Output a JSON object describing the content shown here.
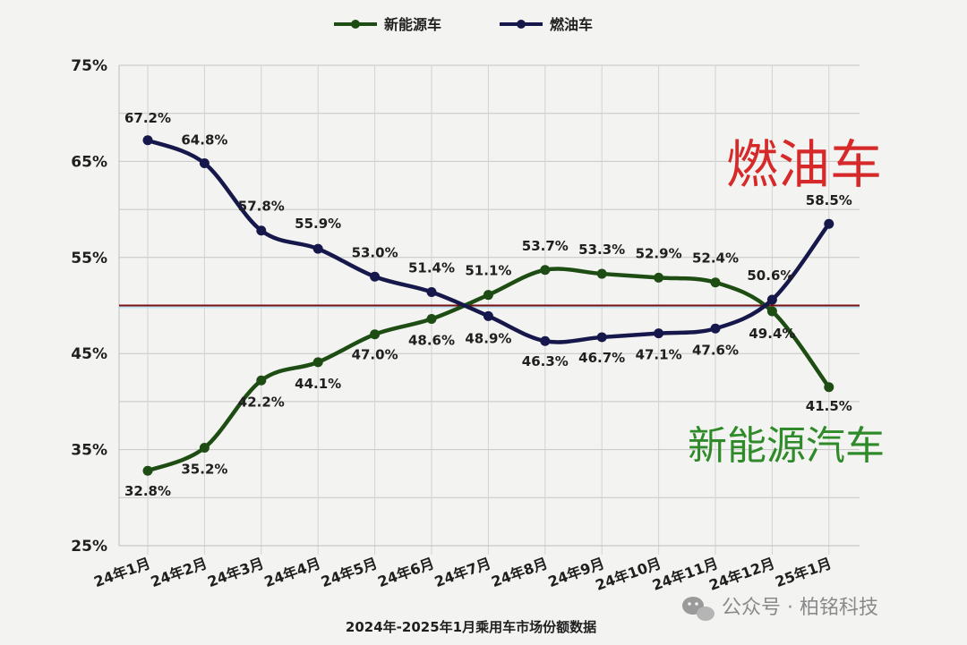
{
  "chart_data": {
    "type": "line",
    "categories": [
      "24年1月",
      "24年2月",
      "24年3月",
      "24年4月",
      "24年5月",
      "24年6月",
      "24年7月",
      "24年8月",
      "24年9月",
      "24年10月",
      "24年11月",
      "24年12月",
      "25年1月"
    ],
    "series": [
      {
        "name": "新能源车",
        "color": "#1e4d14",
        "values": [
          32.8,
          35.2,
          42.2,
          44.1,
          47.0,
          48.6,
          51.1,
          53.7,
          53.3,
          52.9,
          52.4,
          49.4,
          41.5
        ],
        "labels": [
          "32.8%",
          "35.2%",
          "42.2%",
          "44.1%",
          "47.0%",
          "48.6%",
          "51.1%",
          "53.7%",
          "53.3%",
          "52.9%",
          "52.4%",
          "49.4%",
          "41.5%"
        ]
      },
      {
        "name": "燃油车",
        "color": "#16174a",
        "values": [
          67.2,
          64.8,
          57.8,
          55.9,
          53.0,
          51.4,
          48.9,
          46.3,
          46.7,
          47.1,
          47.6,
          50.6,
          58.5
        ],
        "labels": [
          "67.2%",
          "64.8%",
          "57.8%",
          "55.9%",
          "53.0%",
          "51.4%",
          "48.9%",
          "46.3%",
          "46.7%",
          "47.1%",
          "47.6%",
          "50.6%",
          "58.5%"
        ]
      }
    ],
    "y_ticks": [
      "25%",
      "35%",
      "45%",
      "55%",
      "65%",
      "75%"
    ],
    "ylim": [
      25,
      75
    ],
    "reference_line": {
      "value": 50,
      "color": "#7a1010"
    },
    "grid": true,
    "legend_position": "top"
  },
  "annotations": {
    "ice": {
      "text": "燃油车",
      "color": "#d62a2a"
    },
    "nev": {
      "text": "新能源汽车",
      "color": "#2f8a2a"
    }
  },
  "caption": "2024年-2025年1月乘用车市场份额数据",
  "watermark": {
    "text": "公众号 · 柏铭科技",
    "icon": "wechat-icon"
  }
}
